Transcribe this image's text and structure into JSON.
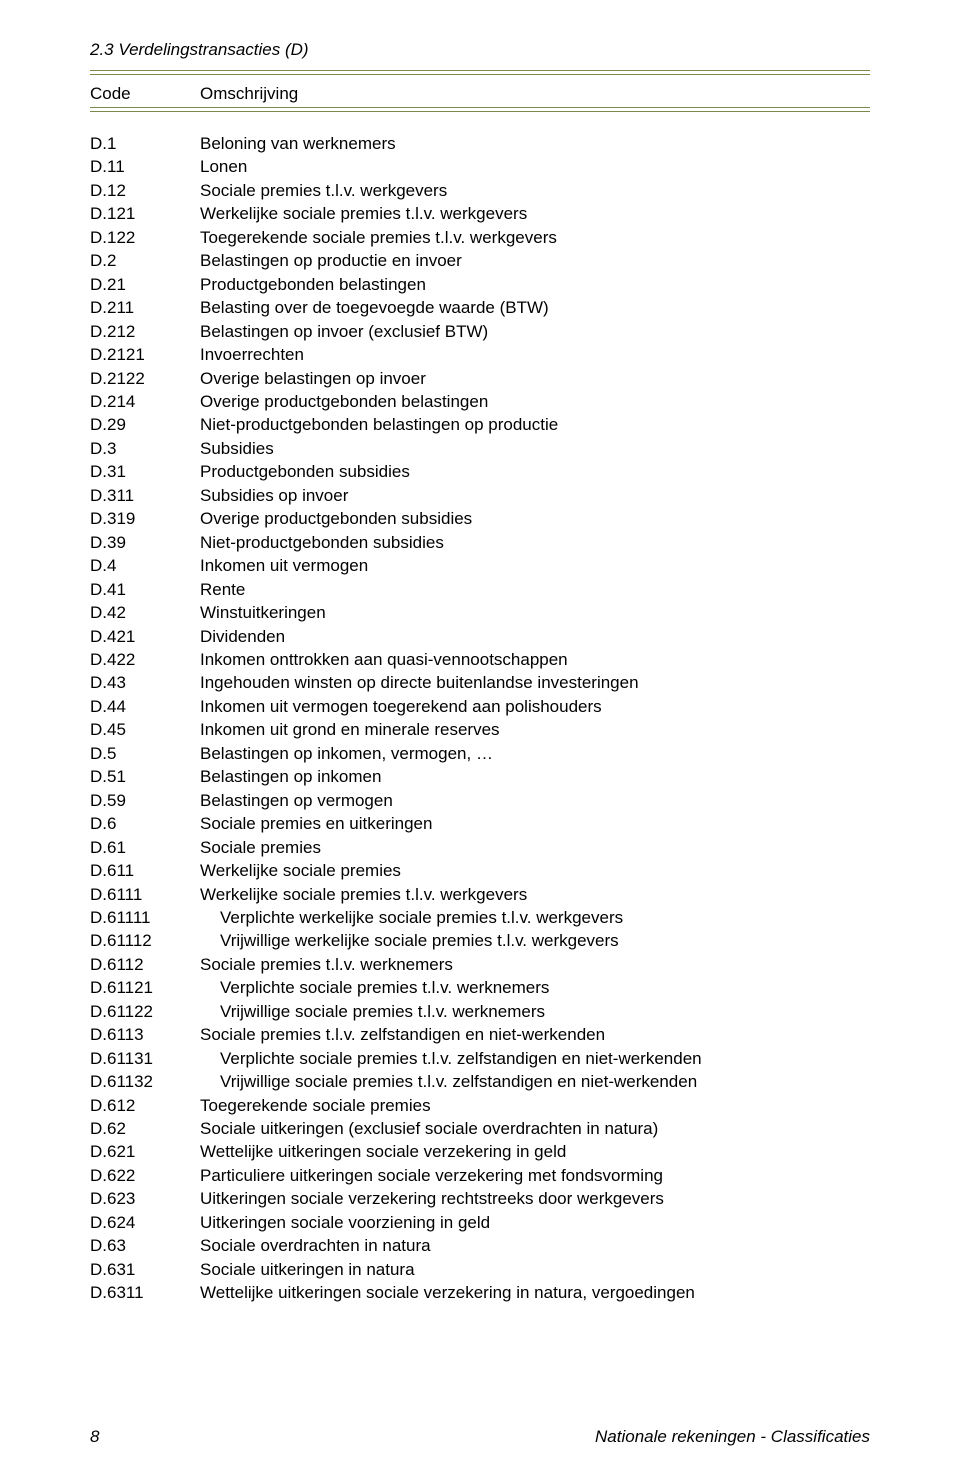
{
  "section_title": "2.3 Verdelingstransacties (D)",
  "colors": {
    "rule": "#7a8a4a",
    "text": "#000000",
    "bg": "#ffffff"
  },
  "table_header": {
    "code": "Code",
    "desc": "Omschrijving"
  },
  "rows": [
    {
      "code": "D.1",
      "desc": "Beloning van werknemers",
      "indent": 0
    },
    {
      "code": "D.11",
      "desc": "Lonen",
      "indent": 0
    },
    {
      "code": "D.12",
      "desc": "Sociale premies t.l.v. werkgevers",
      "indent": 0
    },
    {
      "code": "D.121",
      "desc": "Werkelijke sociale premies t.l.v. werkgevers",
      "indent": 0
    },
    {
      "code": "D.122",
      "desc": "Toegerekende sociale premies t.l.v. werkgevers",
      "indent": 0
    },
    {
      "code": "D.2",
      "desc": "Belastingen op productie en invoer",
      "indent": 0
    },
    {
      "code": "D.21",
      "desc": "Productgebonden belastingen",
      "indent": 0
    },
    {
      "code": "D.211",
      "desc": "Belasting over de toegevoegde waarde (BTW)",
      "indent": 0
    },
    {
      "code": "D.212",
      "desc": "Belastingen op invoer (exclusief BTW)",
      "indent": 0
    },
    {
      "code": "D.2121",
      "desc": "Invoerrechten",
      "indent": 0
    },
    {
      "code": "D.2122",
      "desc": "Overige belastingen op invoer",
      "indent": 0
    },
    {
      "code": "D.214",
      "desc": "Overige productgebonden belastingen",
      "indent": 0
    },
    {
      "code": "D.29",
      "desc": "Niet-productgebonden belastingen op productie",
      "indent": 0
    },
    {
      "code": "D.3",
      "desc": "Subsidies",
      "indent": 0
    },
    {
      "code": "D.31",
      "desc": "Productgebonden subsidies",
      "indent": 0
    },
    {
      "code": "D.311",
      "desc": "Subsidies op invoer",
      "indent": 0
    },
    {
      "code": "D.319",
      "desc": "Overige productgebonden subsidies",
      "indent": 0
    },
    {
      "code": "D.39",
      "desc": "Niet-productgebonden subsidies",
      "indent": 0
    },
    {
      "code": "D.4",
      "desc": "Inkomen uit vermogen",
      "indent": 0
    },
    {
      "code": "D.41",
      "desc": "Rente",
      "indent": 0
    },
    {
      "code": "D.42",
      "desc": "Winstuitkeringen",
      "indent": 0
    },
    {
      "code": "D.421",
      "desc": "Dividenden",
      "indent": 0
    },
    {
      "code": "D.422",
      "desc": "Inkomen onttrokken aan quasi-vennootschappen",
      "indent": 0
    },
    {
      "code": "D.43",
      "desc": "Ingehouden winsten op directe buitenlandse investeringen",
      "indent": 0
    },
    {
      "code": "D.44",
      "desc": "Inkomen uit vermogen toegerekend aan polishouders",
      "indent": 0
    },
    {
      "code": "D.45",
      "desc": "Inkomen uit grond en minerale reserves",
      "indent": 0
    },
    {
      "code": "D.5",
      "desc": "Belastingen op inkomen, vermogen, …",
      "indent": 0
    },
    {
      "code": "D.51",
      "desc": "Belastingen op inkomen",
      "indent": 0
    },
    {
      "code": "D.59",
      "desc": "Belastingen op vermogen",
      "indent": 0
    },
    {
      "code": "D.6",
      "desc": "Sociale premies en uitkeringen",
      "indent": 0
    },
    {
      "code": "D.61",
      "desc": "Sociale premies",
      "indent": 0
    },
    {
      "code": "D.611",
      "desc": "Werkelijke sociale premies",
      "indent": 0
    },
    {
      "code": "D.6111",
      "desc": "Werkelijke sociale premies t.l.v. werkgevers",
      "indent": 0
    },
    {
      "code": "D.61111",
      "desc": "Verplichte werkelijke sociale premies t.l.v. werkgevers",
      "indent": 1
    },
    {
      "code": "D.61112",
      "desc": "Vrijwillige werkelijke sociale premies t.l.v. werkgevers",
      "indent": 1
    },
    {
      "code": "D.6112",
      "desc": "Sociale premies t.l.v. werknemers",
      "indent": 0
    },
    {
      "code": "D.61121",
      "desc": "Verplichte sociale premies t.l.v. werknemers",
      "indent": 1
    },
    {
      "code": "D.61122",
      "desc": "Vrijwillige sociale premies t.l.v. werknemers",
      "indent": 1
    },
    {
      "code": "D.6113",
      "desc": "Sociale premies t.l.v. zelfstandigen en niet-werkenden",
      "indent": 0
    },
    {
      "code": "D.61131",
      "desc": "Verplichte sociale premies t.l.v. zelfstandigen en niet-werkenden",
      "indent": 1
    },
    {
      "code": "D.61132",
      "desc": "Vrijwillige sociale premies t.l.v. zelfstandigen en niet-werkenden",
      "indent": 1
    },
    {
      "code": "D.612",
      "desc": "Toegerekende sociale premies",
      "indent": 0
    },
    {
      "code": "D.62",
      "desc": "Sociale uitkeringen (exclusief sociale overdrachten in natura)",
      "indent": 0
    },
    {
      "code": "D.621",
      "desc": "Wettelijke uitkeringen sociale verzekering in geld",
      "indent": 0
    },
    {
      "code": "D.622",
      "desc": "Particuliere uitkeringen sociale verzekering met fondsvorming",
      "indent": 0
    },
    {
      "code": "D.623",
      "desc": "Uitkeringen sociale verzekering rechtstreeks door werkgevers",
      "indent": 0
    },
    {
      "code": "D.624",
      "desc": "Uitkeringen sociale voorziening in geld",
      "indent": 0
    },
    {
      "code": "D.63",
      "desc": "Sociale overdrachten in natura",
      "indent": 0
    },
    {
      "code": "D.631",
      "desc": "Sociale uitkeringen in natura",
      "indent": 0
    },
    {
      "code": "D.6311",
      "desc": "Wettelijke uitkeringen sociale verzekering in natura, vergoedingen",
      "indent": 0
    }
  ],
  "footer": {
    "page_number": "8",
    "right_text": "Nationale rekeningen - Classificaties"
  }
}
